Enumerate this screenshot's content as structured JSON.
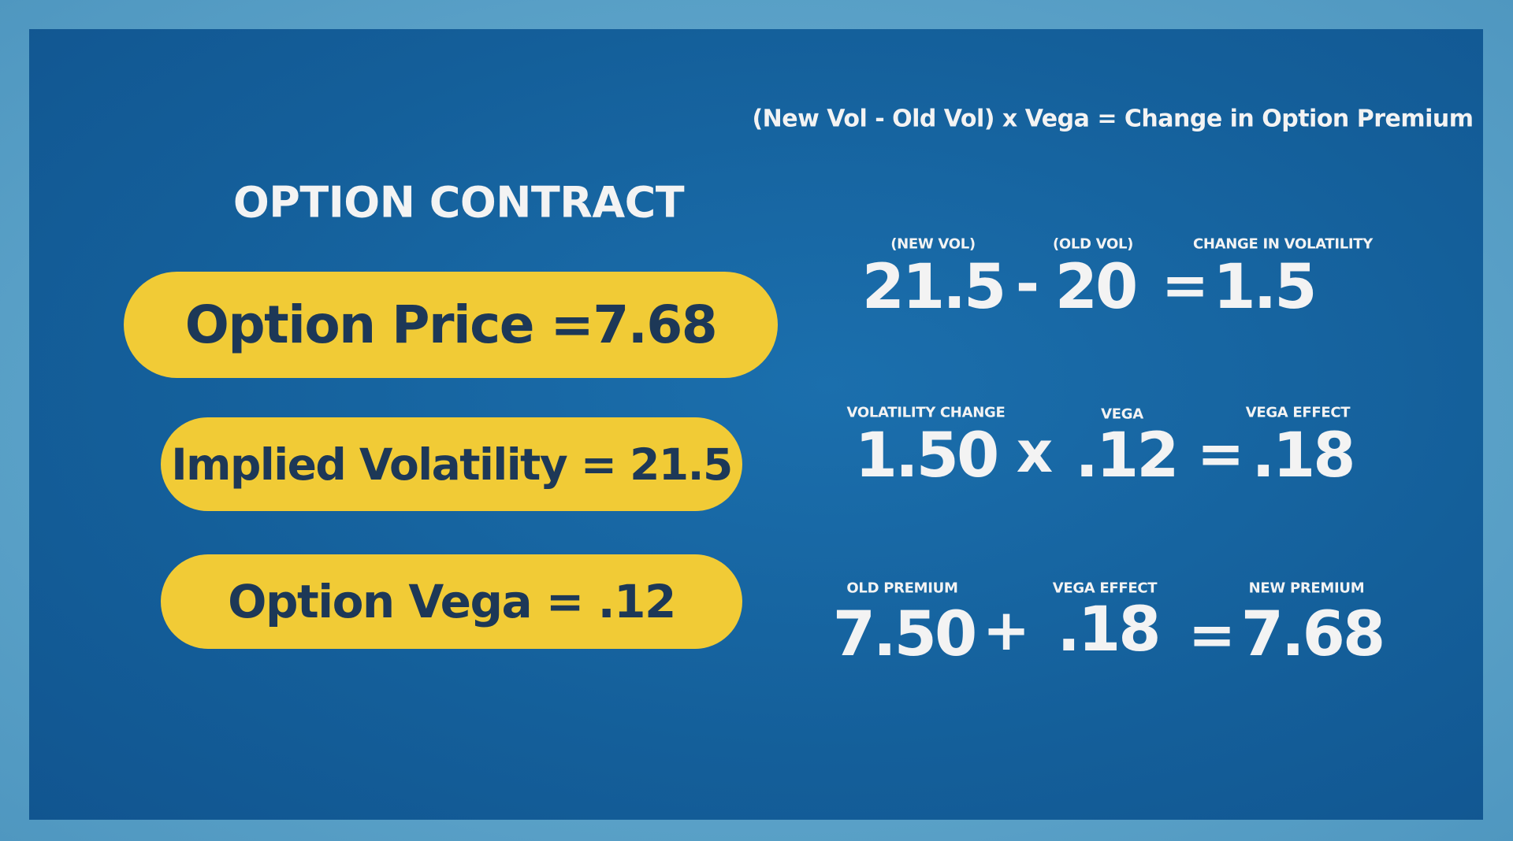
{
  "formula": "(New Vol - Old Vol) x Vega = Change in Option Premium",
  "contract": {
    "title": "OPTION CONTRACT",
    "items": [
      "Option Price =7.68",
      "Implied Volatility = 21.5",
      "Option Vega = .12"
    ]
  },
  "equations": [
    {
      "terms": [
        {
          "label": "(NEW VOL)",
          "value": "21.5"
        },
        {
          "label": "(OLD VOL)",
          "value": "20"
        },
        {
          "label": "CHANGE IN VOLATILITY",
          "value": "1.5"
        }
      ],
      "operators": [
        "-",
        "="
      ]
    },
    {
      "terms": [
        {
          "label": "VOLATILITY CHANGE",
          "value": "1.50"
        },
        {
          "label": "VEGA",
          "value": ".12"
        },
        {
          "label": "VEGA EFFECT",
          "value": ".18"
        }
      ],
      "operators": [
        "x",
        "="
      ]
    },
    {
      "terms": [
        {
          "label": "OLD PREMIUM",
          "value": "7.50"
        },
        {
          "label": "VEGA EFFECT",
          "value": ".18"
        },
        {
          "label": "NEW PREMIUM",
          "value": "7.68"
        }
      ],
      "operators": [
        "+",
        "="
      ]
    }
  ]
}
